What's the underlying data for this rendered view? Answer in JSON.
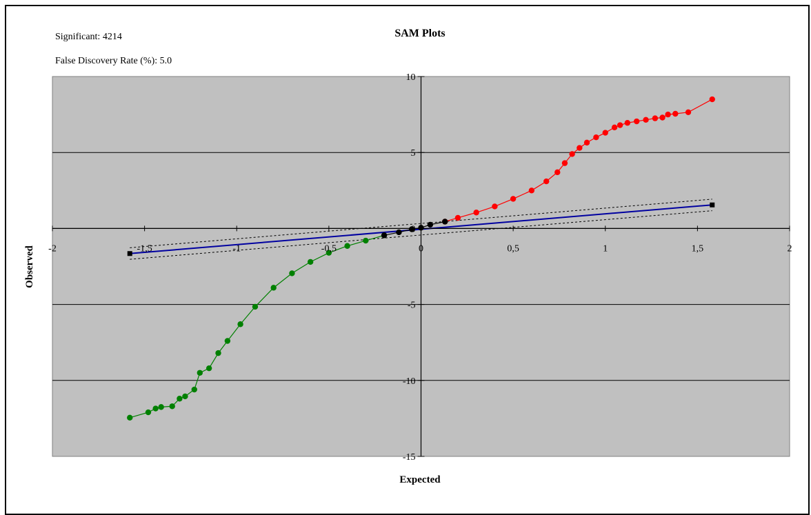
{
  "info": {
    "significant": "Significant: 4214",
    "fdr": "False Discovery Rate (%): 5.0"
  },
  "chart_data": {
    "type": "scatter",
    "title": "SAM Plots",
    "xlabel": "Expected",
    "ylabel": "Observed",
    "xlim": [
      -2,
      2
    ],
    "ylim": [
      -15,
      10
    ],
    "x_ticks": [
      "-2",
      "-1,5",
      "-1",
      "-0,5",
      "0",
      "0,5",
      "1",
      "1,5",
      "2"
    ],
    "y_ticks": [
      "10",
      "5",
      "0",
      "-5",
      "-10",
      "-15"
    ],
    "grid": true,
    "legend": "none",
    "colors": {
      "plot_bg": "#c0c0c0",
      "up": "#ff0000",
      "down": "#008000",
      "neutral": "#000000",
      "reference": "#0000a0"
    },
    "reference_line": {
      "x": [
        -1.58,
        1.58
      ],
      "y": [
        -1.65,
        1.55
      ]
    },
    "band_offset": 0.38,
    "series": [
      {
        "color": "up",
        "x": [
          0.13,
          0.2,
          0.3,
          0.4,
          0.5,
          0.6,
          0.68,
          0.74,
          0.78,
          0.82,
          0.86,
          0.9,
          0.95,
          1.0,
          1.05,
          1.08,
          1.12,
          1.17,
          1.22,
          1.27,
          1.31,
          1.34,
          1.38,
          1.45,
          1.58
        ],
        "y": [
          0.45,
          0.7,
          1.05,
          1.45,
          1.95,
          2.5,
          3.1,
          3.7,
          4.3,
          4.9,
          5.3,
          5.65,
          6.0,
          6.3,
          6.65,
          6.8,
          6.95,
          7.05,
          7.15,
          7.25,
          7.3,
          7.5,
          7.55,
          7.65,
          8.5
        ]
      },
      {
        "color": "down",
        "x": [
          -0.2,
          -0.3,
          -0.4,
          -0.5,
          -0.6,
          -0.7,
          -0.8,
          -0.9,
          -0.98,
          -1.05,
          -1.1,
          -1.15,
          -1.2,
          -1.23,
          -1.28,
          -1.31,
          -1.35,
          -1.41,
          -1.44,
          -1.48,
          -1.58
        ],
        "y": [
          -0.45,
          -0.8,
          -1.15,
          -1.6,
          -2.2,
          -2.95,
          -3.9,
          -5.15,
          -6.3,
          -7.4,
          -8.2,
          -9.2,
          -9.5,
          -10.6,
          -11.05,
          -11.2,
          -11.7,
          -11.75,
          -11.85,
          -12.1,
          -12.45
        ]
      },
      {
        "color": "neutral",
        "x": [
          -0.2,
          -0.12,
          -0.05,
          0.0,
          0.05,
          0.13
        ],
        "y": [
          -0.45,
          -0.25,
          -0.05,
          0.05,
          0.25,
          0.45
        ]
      }
    ]
  }
}
